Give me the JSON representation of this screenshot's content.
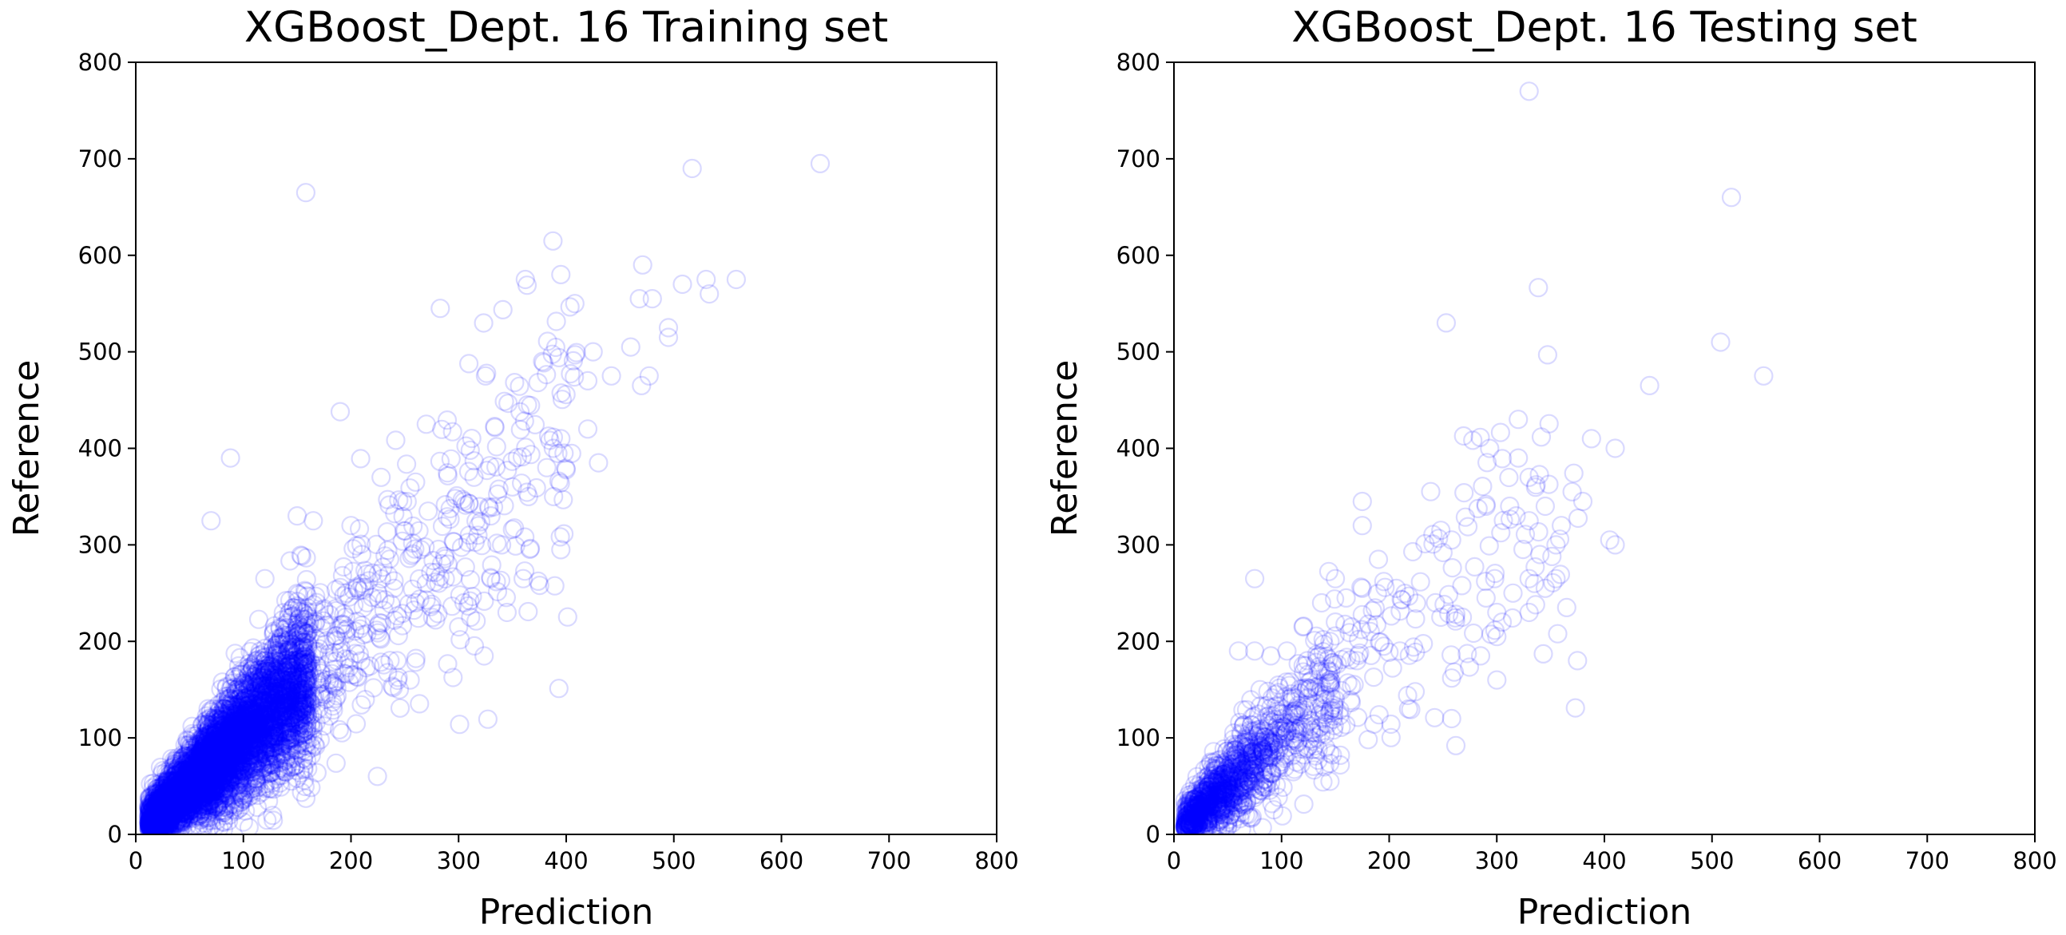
{
  "colors": {
    "marker": "#0000ff",
    "axes": "#000000",
    "background": "#ffffff"
  },
  "chart_data": [
    {
      "type": "scatter",
      "title": "XGBoost_Dept. 16 Training set",
      "xlabel": "Prediction",
      "ylabel": "Reference",
      "xlim": [
        0,
        800
      ],
      "ylim": [
        0,
        800
      ],
      "xticks": [
        "0",
        "100",
        "200",
        "300",
        "400",
        "500",
        "600",
        "700",
        "800"
      ],
      "yticks": [
        "0",
        "100",
        "200",
        "300",
        "400",
        "500",
        "600",
        "700",
        "800"
      ],
      "grid": false,
      "marker": "open-circle",
      "marker_alpha": 0.15,
      "point_count": 6000,
      "points": [
        [
          636,
          695
        ],
        [
          517,
          690
        ],
        [
          158,
          665
        ],
        [
          395,
          580
        ],
        [
          362,
          575
        ],
        [
          530,
          575
        ],
        [
          558,
          575
        ],
        [
          508,
          570
        ],
        [
          471,
          590
        ],
        [
          533,
          560
        ],
        [
          408,
          550
        ],
        [
          283,
          545
        ],
        [
          468,
          555
        ],
        [
          480,
          555
        ],
        [
          495,
          525
        ],
        [
          460,
          505
        ],
        [
          425,
          500
        ],
        [
          495,
          515
        ],
        [
          442,
          475
        ],
        [
          477,
          475
        ],
        [
          470,
          465
        ],
        [
          420,
          470
        ],
        [
          378,
          490
        ],
        [
          325,
          475
        ],
        [
          364,
          445
        ],
        [
          190,
          438
        ],
        [
          270,
          425
        ],
        [
          430,
          385
        ],
        [
          395,
          410
        ],
        [
          420,
          420
        ],
        [
          398,
          395
        ],
        [
          382,
          380
        ],
        [
          88,
          390
        ],
        [
          330,
          330
        ],
        [
          350,
          360
        ],
        [
          310,
          310
        ],
        [
          305,
          345
        ],
        [
          365,
          350
        ],
        [
          388,
          400
        ],
        [
          70,
          325
        ],
        [
          150,
          330
        ],
        [
          165,
          325
        ],
        [
          200,
          320
        ],
        [
          228,
          370
        ],
        [
          248,
          345
        ],
        [
          260,
          365
        ],
        [
          340,
          300
        ],
        [
          395,
          295
        ],
        [
          260,
          240
        ],
        [
          300,
          215
        ],
        [
          305,
          240
        ],
        [
          255,
          160
        ],
        [
          245,
          150
        ],
        [
          175,
          145
        ],
        [
          135,
          95
        ],
        [
          120,
          265
        ],
        [
          210,
          290
        ],
        [
          225,
          250
        ],
        [
          290,
          280
        ],
        [
          330,
          265
        ],
        [
          360,
          265
        ],
        [
          345,
          230
        ],
        [
          318,
          310
        ],
        [
          270,
          260
        ],
        [
          240,
          255
        ],
        [
          215,
          240
        ],
        [
          195,
          225
        ],
        [
          185,
          200
        ]
      ]
    },
    {
      "type": "scatter",
      "title": "XGBoost_Dept. 16 Testing set",
      "xlabel": "Prediction",
      "ylabel": "Reference",
      "xlim": [
        0,
        800
      ],
      "ylim": [
        0,
        800
      ],
      "xticks": [
        "0",
        "100",
        "200",
        "300",
        "400",
        "500",
        "600",
        "700",
        "800"
      ],
      "yticks": [
        "0",
        "100",
        "200",
        "300",
        "400",
        "500",
        "600",
        "700",
        "800"
      ],
      "grid": false,
      "marker": "open-circle",
      "marker_alpha": 0.15,
      "point_count": 1400,
      "points": [
        [
          330,
          770
        ],
        [
          518,
          660
        ],
        [
          253,
          530
        ],
        [
          508,
          510
        ],
        [
          548,
          475
        ],
        [
          442,
          465
        ],
        [
          320,
          430
        ],
        [
          388,
          410
        ],
        [
          410,
          400
        ],
        [
          320,
          390
        ],
        [
          330,
          370
        ],
        [
          370,
          355
        ],
        [
          380,
          345
        ],
        [
          175,
          345
        ],
        [
          290,
          340
        ],
        [
          312,
          340
        ],
        [
          345,
          340
        ],
        [
          318,
          330
        ],
        [
          330,
          325
        ],
        [
          360,
          320
        ],
        [
          355,
          300
        ],
        [
          175,
          320
        ],
        [
          248,
          315
        ],
        [
          258,
          305
        ],
        [
          405,
          305
        ],
        [
          410,
          300
        ],
        [
          250,
          292
        ],
        [
          340,
          290
        ],
        [
          190,
          285
        ],
        [
          330,
          265
        ],
        [
          298,
          265
        ],
        [
          345,
          255
        ],
        [
          300,
          230
        ],
        [
          330,
          230
        ],
        [
          262,
          228
        ],
        [
          248,
          225
        ],
        [
          268,
          225
        ],
        [
          195,
          262
        ],
        [
          75,
          265
        ],
        [
          150,
          265
        ],
        [
          175,
          255
        ],
        [
          212,
          243
        ],
        [
          375,
          180
        ],
        [
          300,
          205
        ],
        [
          258,
          162
        ],
        [
          258,
          120
        ],
        [
          262,
          92
        ],
        [
          218,
          130
        ],
        [
          160,
          245
        ],
        [
          150,
          220
        ],
        [
          165,
          215
        ],
        [
          145,
          200
        ],
        [
          120,
          215
        ],
        [
          60,
          190
        ],
        [
          75,
          190
        ],
        [
          90,
          185
        ],
        [
          105,
          190
        ],
        [
          80,
          150
        ],
        [
          120,
          175
        ],
        [
          135,
          185
        ],
        [
          170,
          180
        ],
        [
          140,
          140
        ],
        [
          115,
          95
        ],
        [
          140,
          70
        ],
        [
          145,
          55
        ],
        [
          195,
          195
        ],
        [
          210,
          190
        ],
        [
          290,
          245
        ],
        [
          335,
          260
        ],
        [
          355,
          265
        ],
        [
          315,
          250
        ],
        [
          365,
          235
        ],
        [
          305,
          220
        ],
        [
          300,
          160
        ],
        [
          285,
          185
        ]
      ]
    }
  ]
}
